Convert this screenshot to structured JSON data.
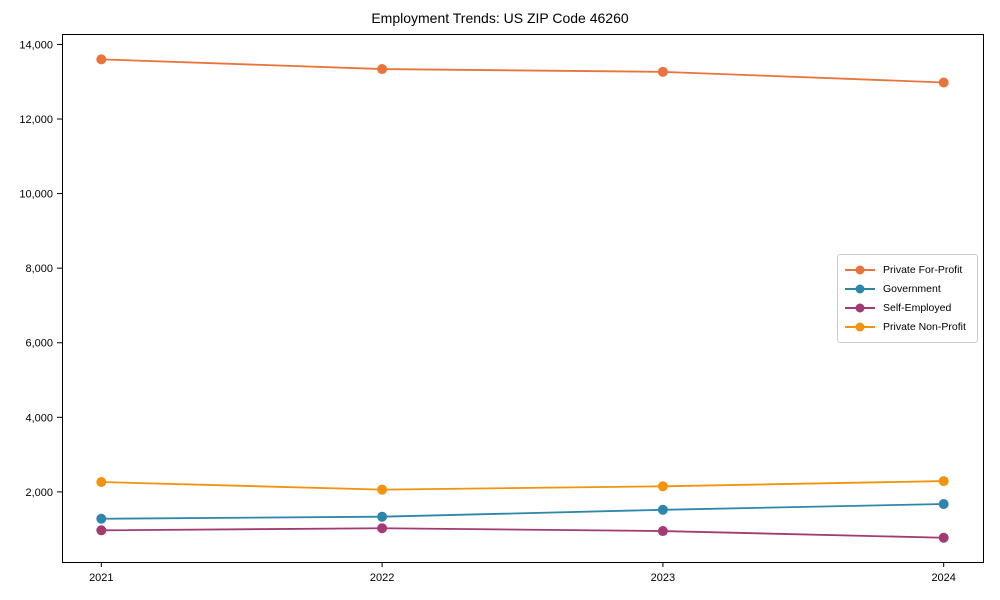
{
  "chart_data": {
    "type": "line",
    "title": "Employment Trends: US ZIP Code 46260",
    "xlabel": "",
    "ylabel": "",
    "x": [
      2021,
      2022,
      2023,
      2024
    ],
    "x_tick_labels": [
      "2021",
      "2022",
      "2023",
      "2024"
    ],
    "series": [
      {
        "name": "Private For-Profit",
        "color": "#E8743B",
        "values": [
          13600,
          13340,
          13265,
          12980
        ]
      },
      {
        "name": "Government",
        "color": "#2E86AB",
        "values": [
          1280,
          1335,
          1520,
          1675
        ]
      },
      {
        "name": "Self-Employed",
        "color": "#A23B72",
        "values": [
          970,
          1025,
          950,
          770
        ]
      },
      {
        "name": "Private Non-Profit",
        "color": "#F1930D",
        "values": [
          2265,
          2060,
          2150,
          2290
        ]
      }
    ],
    "yticks": [
      2000,
      4000,
      6000,
      8000,
      10000,
      12000,
      14000
    ],
    "ytick_labels": [
      "2,000",
      "4,000",
      "6,000",
      "8,000",
      "10,000",
      "12,000",
      "14,000"
    ],
    "xlim": [
      2020.86,
      2024.14
    ],
    "ylim": [
      120,
      14280
    ],
    "grid": false,
    "legend_position": "center-right",
    "axis_color": "#000000",
    "background_color": "#ffffff"
  }
}
